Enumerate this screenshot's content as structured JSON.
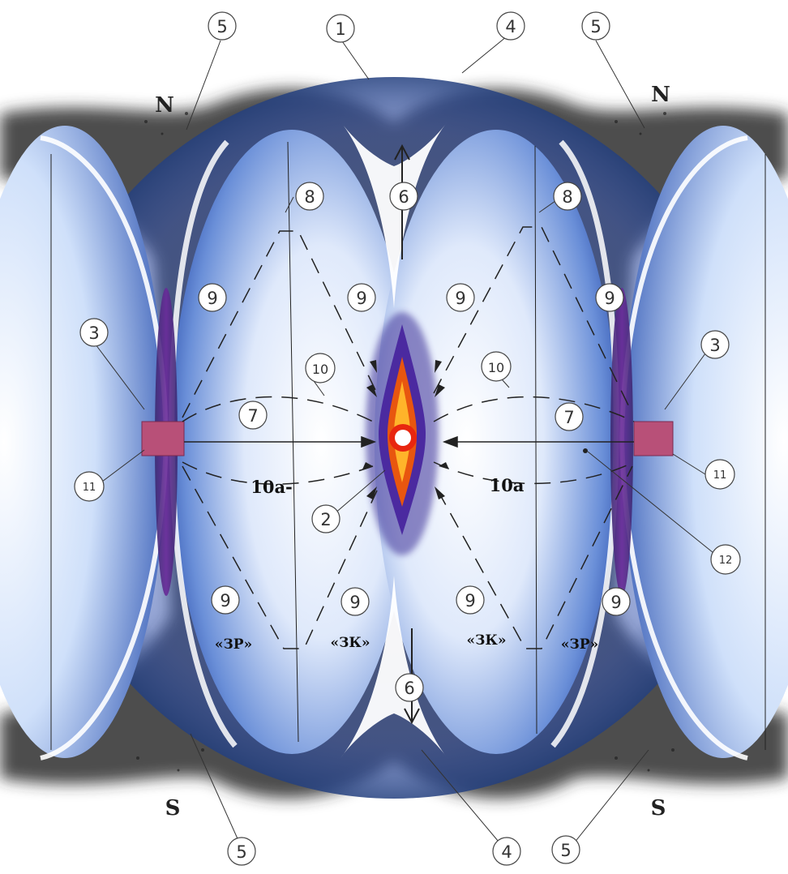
{
  "poles": {
    "north": "N",
    "south": "S"
  },
  "zones": {
    "zr": "«ЗР»",
    "zk": "«ЗК»"
  },
  "labels": {
    "n1": "1",
    "n2": "2",
    "n3": "3",
    "n4": "4",
    "n5": "5",
    "n6": "6",
    "n7": "7",
    "n8": "8",
    "n9": "9",
    "n10": "10",
    "n10a": "10а",
    "n10a_left": "10а-",
    "n11": "11",
    "n12": "12"
  },
  "colors": {
    "lobe_blue": "#2f5fc4",
    "lobe_light": "#eef4ff",
    "dust": "#2a2a2a",
    "core": "#e84a10",
    "core_glow": "#4a2a9a",
    "connector": "#b0507a"
  }
}
